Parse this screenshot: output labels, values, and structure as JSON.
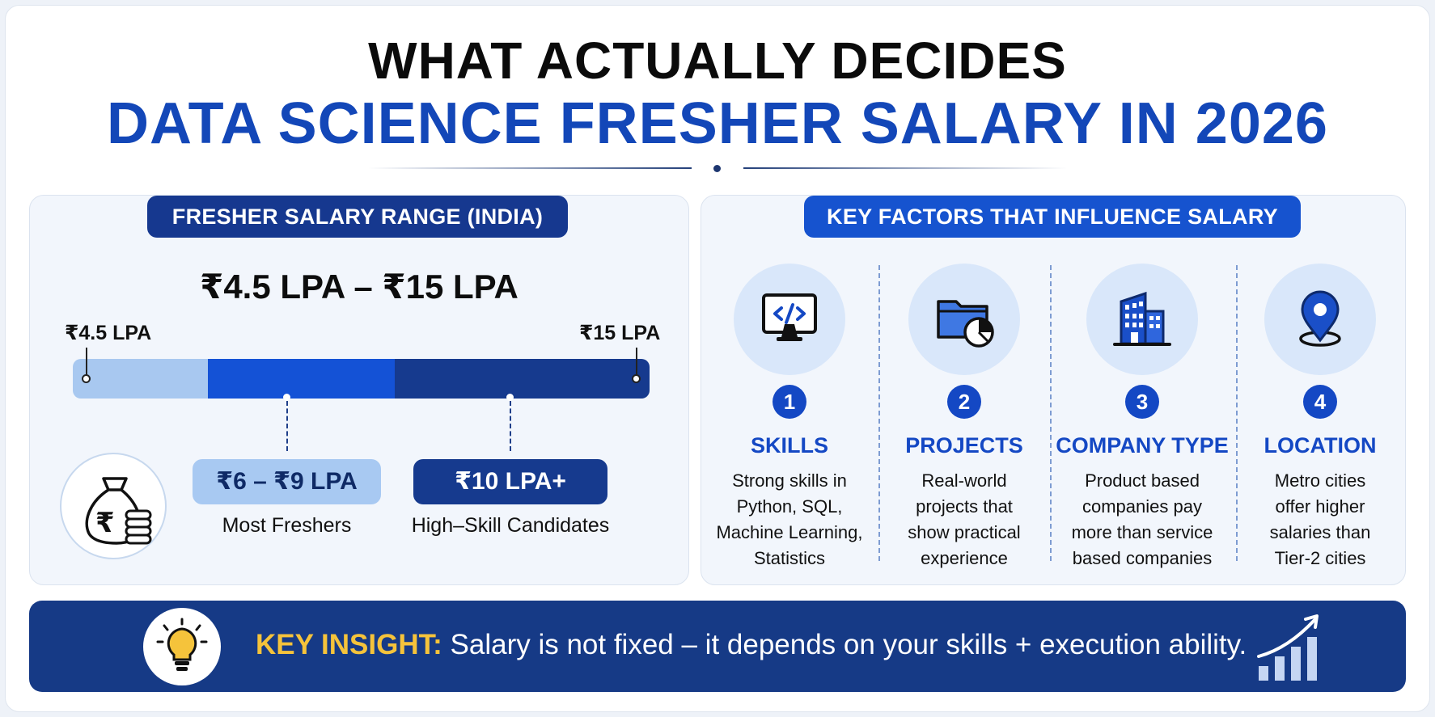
{
  "header": {
    "title_line1": "WHAT ACTUALLY DECIDES",
    "title_line2": "DATA SCIENCE FRESHER SALARY IN 2026"
  },
  "salary_range": {
    "heading": "FRESHER SALARY RANGE (INDIA)",
    "range_text": "₹4.5 LPA – ₹15 LPA",
    "min_label": "₹4.5 LPA",
    "max_label": "₹15 LPA",
    "bands": [
      {
        "label": "₹6 – ₹9 LPA",
        "caption": "Most Freshers"
      },
      {
        "label": "₹10 LPA+",
        "caption": "High–Skill Candidates"
      }
    ],
    "icon": "money-bag-rupee-icon",
    "currency_symbol": "₹"
  },
  "factors": {
    "heading": "KEY FACTORS THAT INFLUENCE SALARY",
    "items": [
      {
        "number": "1",
        "title": "SKILLS",
        "icon": "code-monitor-icon",
        "desc_lines": [
          "Strong skills in",
          "Python, SQL,",
          "Machine Learning,",
          "Statistics"
        ]
      },
      {
        "number": "2",
        "title": "PROJECTS",
        "icon": "folder-chart-icon",
        "desc_lines": [
          "Real-world",
          "projects that",
          "show practical",
          "experience"
        ]
      },
      {
        "number": "3",
        "title": "COMPANY TYPE",
        "icon": "building-icon",
        "desc_lines": [
          "Product based",
          "companies pay",
          "more than service",
          "based companies"
        ]
      },
      {
        "number": "4",
        "title": "LOCATION",
        "icon": "location-pin-icon",
        "desc_lines": [
          "Metro cities",
          "offer higher",
          "salaries than",
          "Tier-2 cities"
        ]
      }
    ]
  },
  "insight": {
    "key": "KEY INSIGHT:",
    "text": "Salary is not fixed – it depends on your skills + execution ability.",
    "icon": "lightbulb-icon",
    "trend_icon": "growth-chart-icon"
  },
  "colors": {
    "accent_blue": "#1448c4",
    "dark_navy": "#163a86",
    "light_blue": "#a8c8f0",
    "highlight_yellow": "#f5c33b"
  }
}
